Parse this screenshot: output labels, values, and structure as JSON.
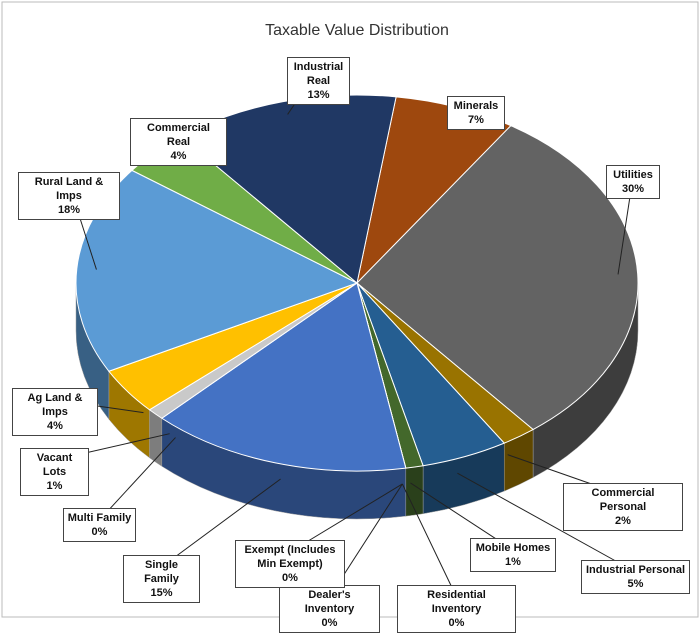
{
  "chart_data": {
    "type": "pie",
    "title": "Taxable Value Distribution",
    "categories": [
      "Minerals",
      "Utilities",
      "Commercial Personal",
      "Industrial Personal",
      "Mobile Homes",
      "Residential Inventory",
      "Dealer's Inventory",
      "Exempt (Includes Min Exempt)",
      "Single Family",
      "Multi Family",
      "Vacant Lots",
      "Ag Land & Imps",
      "Rural Land & Imps",
      "Commercial Real",
      "Industrial Real"
    ],
    "values": [
      7,
      30,
      2,
      5,
      1,
      0,
      0,
      0,
      15,
      0,
      1,
      4,
      18,
      4,
      13
    ],
    "value_labels": [
      "7%",
      "30%",
      "2%",
      "5%",
      "1%",
      "0%",
      "0%",
      "0%",
      "15%",
      "0%",
      "1%",
      "4%",
      "18%",
      "4%",
      "13%"
    ],
    "colors": [
      "#9e480e",
      "#636363",
      "#997300",
      "#255e91",
      "#43682b",
      "#e6a6a0",
      "#8c6d4f",
      "#bfbfbf",
      "#4472c4",
      "#a5a5a5",
      "#c9c9c9",
      "#ffc000",
      "#5b9bd5",
      "#70ad47",
      "#203864"
    ]
  }
}
